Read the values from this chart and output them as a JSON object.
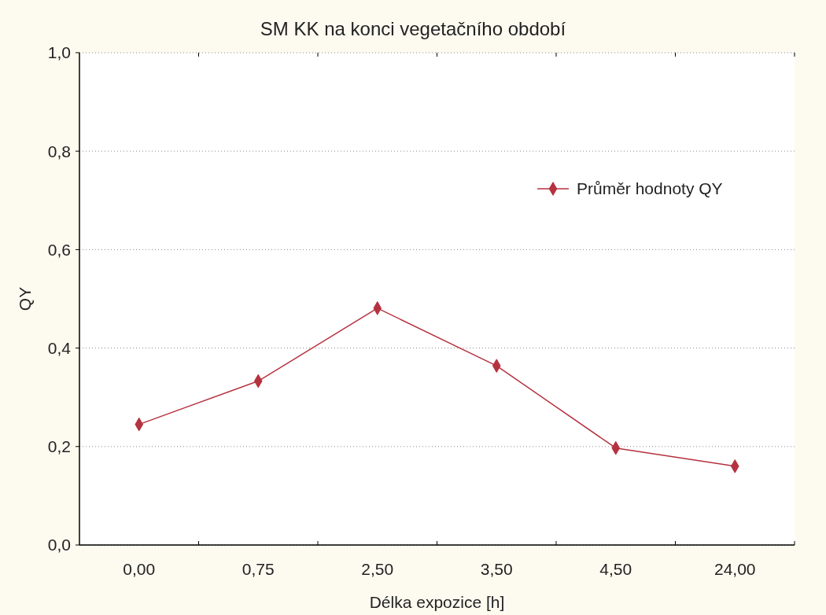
{
  "chart_data": {
    "type": "line",
    "title": "SM KK na konci vegetačního období",
    "xlabel": "Délka expozice [h]",
    "ylabel": "QY",
    "categories": [
      "0,00",
      "0,75",
      "2,50",
      "3,50",
      "4,50",
      "24,00"
    ],
    "series": [
      {
        "name": "Průměr hodnoty QY",
        "color": "#b5323f",
        "values": [
          0.245,
          0.333,
          0.481,
          0.364,
          0.197,
          0.16
        ]
      }
    ],
    "ylim": [
      0,
      1
    ],
    "yticks": [
      {
        "value": 0,
        "label": "0,0"
      },
      {
        "value": 0.2,
        "label": "0,2"
      },
      {
        "value": 0.4,
        "label": "0,4"
      },
      {
        "value": 0.6,
        "label": "0,6"
      },
      {
        "value": 0.8,
        "label": "0,8"
      },
      {
        "value": 1,
        "label": "1,0"
      }
    ],
    "grid": "y",
    "legend": "top right",
    "marker": "diamond"
  }
}
